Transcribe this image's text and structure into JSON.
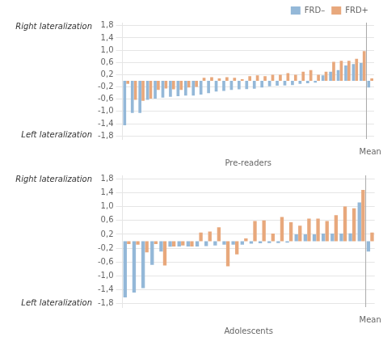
{
  "chart_data": [
    {
      "type": "bar",
      "xlabel": "Pre-readers",
      "categories": [
        null,
        null,
        null,
        null,
        null,
        null,
        null,
        null,
        null,
        null,
        null,
        null,
        null,
        null,
        null,
        null,
        null,
        null,
        null,
        null,
        null,
        null,
        null,
        null,
        null,
        null,
        null,
        null,
        null,
        null,
        null,
        null,
        "Mean"
      ],
      "series": [
        {
          "name": "FRD–",
          "color": "#94b8d8",
          "values": [
            -1.45,
            -1.05,
            -1.05,
            -0.62,
            -0.58,
            -0.55,
            -0.52,
            -0.5,
            -0.48,
            -0.48,
            -0.45,
            -0.4,
            -0.35,
            -0.33,
            -0.3,
            -0.28,
            -0.27,
            -0.26,
            -0.22,
            -0.18,
            -0.16,
            -0.15,
            -0.14,
            -0.1,
            -0.08,
            -0.06,
            0.18,
            0.3,
            0.35,
            0.5,
            0.55,
            0.58,
            -0.22
          ]
        },
        {
          "name": "FRD+",
          "color": "#e8a87c",
          "values": [
            -0.1,
            -0.62,
            -0.65,
            -0.58,
            -0.3,
            -0.25,
            -0.28,
            -0.3,
            -0.22,
            -0.2,
            0.1,
            0.12,
            0.08,
            0.12,
            0.1,
            0.05,
            0.15,
            0.18,
            0.15,
            0.2,
            0.2,
            0.25,
            0.2,
            0.3,
            0.35,
            0.2,
            0.3,
            0.62,
            0.65,
            0.65,
            0.72,
            0.97,
            0.08
          ]
        }
      ],
      "ylim": [
        -1.9,
        1.9
      ],
      "yticks": [
        {
          "value": -1.8,
          "label": "-1,8"
        },
        {
          "value": -1.4,
          "label": "-1,4"
        },
        {
          "value": -1.0,
          "label": "-1,0"
        },
        {
          "value": -0.6,
          "label": "-0,6"
        },
        {
          "value": -0.2,
          "label": "-0,2"
        },
        {
          "value": 0.2,
          "label": "0,2"
        },
        {
          "value": 0.6,
          "label": "0,6"
        },
        {
          "value": 1.0,
          "label": "1,0"
        },
        {
          "value": 1.4,
          "label": "1,4"
        },
        {
          "value": 1.8,
          "label": "1,8"
        }
      ],
      "grid": true,
      "legend": "upper right",
      "annotations": [
        {
          "text": "Right lateralization",
          "y": 1.9
        },
        {
          "text": "Left lateralization",
          "y": -1.9
        }
      ]
    },
    {
      "type": "bar",
      "xlabel": "Adolescents",
      "categories": [
        null,
        null,
        null,
        null,
        null,
        null,
        null,
        null,
        null,
        null,
        null,
        null,
        null,
        null,
        null,
        null,
        null,
        null,
        null,
        null,
        null,
        null,
        null,
        null,
        null,
        null,
        null,
        "Mean"
      ],
      "series": [
        {
          "name": "FRD–",
          "color": "#94b8d8",
          "values": [
            -1.62,
            -1.48,
            -1.35,
            -0.68,
            -0.3,
            -0.16,
            -0.15,
            -0.15,
            -0.15,
            -0.14,
            -0.12,
            -0.1,
            -0.1,
            -0.1,
            -0.07,
            -0.06,
            -0.05,
            -0.05,
            -0.04,
            0.2,
            0.2,
            0.2,
            0.22,
            0.22,
            0.22,
            0.23,
            1.12,
            -0.3
          ]
        },
        {
          "name": "FRD+",
          "color": "#e8a87c",
          "values": [
            -0.08,
            -0.1,
            -0.32,
            -0.08,
            -0.7,
            -0.15,
            -0.12,
            -0.15,
            0.25,
            0.28,
            0.4,
            -0.72,
            -0.38,
            0.08,
            0.58,
            0.6,
            0.22,
            0.7,
            0.55,
            0.45,
            0.65,
            0.65,
            0.58,
            0.75,
            1.0,
            0.95,
            1.48,
            0.25
          ]
        }
      ],
      "ylim": [
        -1.9,
        1.9
      ],
      "yticks": [
        {
          "value": -1.8,
          "label": "-1,8"
        },
        {
          "value": -1.4,
          "label": "-1,4"
        },
        {
          "value": -1.0,
          "label": "-1,0"
        },
        {
          "value": -0.6,
          "label": "-0,6"
        },
        {
          "value": -0.2,
          "label": "-0,2"
        },
        {
          "value": 0.2,
          "label": "0,2"
        },
        {
          "value": 0.6,
          "label": "0,6"
        },
        {
          "value": 1.0,
          "label": "1,0"
        },
        {
          "value": 1.4,
          "label": "1,4"
        },
        {
          "value": 1.8,
          "label": "1,8"
        }
      ],
      "grid": true,
      "annotations": [
        {
          "text": "Right lateralization",
          "y": 1.9
        },
        {
          "text": "Left lateralization",
          "y": -1.9
        }
      ]
    }
  ]
}
